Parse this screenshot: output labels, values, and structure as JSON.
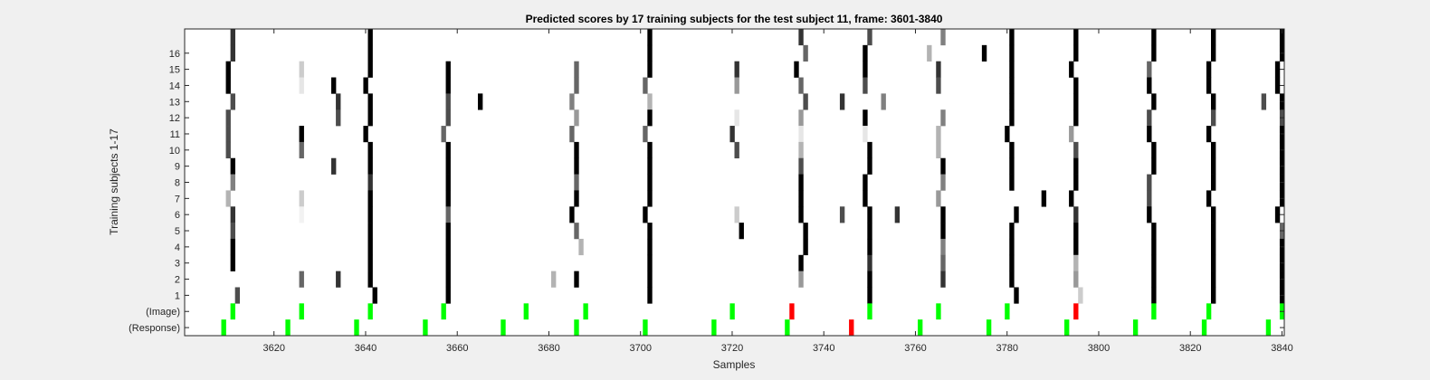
{
  "chart_data": {
    "type": "heatmap",
    "title": "Predicted scores by 17 training subjects for the test subject 11, frame: 3601-3840",
    "xlabel": "Samples",
    "ylabel": "Training subjects 1-17",
    "xlim": [
      3601,
      3840
    ],
    "x_ticks": [
      3620,
      3640,
      3660,
      3680,
      3700,
      3720,
      3740,
      3760,
      3780,
      3800,
      3820,
      3840
    ],
    "y_tick_labels": [
      "16",
      "15",
      "14",
      "13",
      "12",
      "11",
      "10",
      "9",
      "8",
      "7",
      "6",
      "5",
      "4",
      "3",
      "2",
      "1",
      "(Image)",
      "(Response)"
    ],
    "rows": [
      {
        "label": "",
        "marks": [
          [
            3611,
            0.8
          ],
          [
            3641,
            1.0
          ],
          [
            3702,
            1.0
          ],
          [
            3735,
            0.8
          ],
          [
            3750,
            0.7
          ],
          [
            3766,
            0.5
          ],
          [
            3781,
            1.0
          ],
          [
            3795,
            1.0
          ],
          [
            3812,
            1.0
          ],
          [
            3825,
            1.0
          ],
          [
            3840,
            1.0
          ]
        ]
      },
      {
        "label": "16",
        "marks": [
          [
            3611,
            0.8
          ],
          [
            3641,
            1.0
          ],
          [
            3702,
            1.0
          ],
          [
            3736,
            0.6
          ],
          [
            3749,
            1.0
          ],
          [
            3763,
            0.3
          ],
          [
            3775,
            1.0
          ],
          [
            3781,
            1.0
          ],
          [
            3795,
            1.0
          ],
          [
            3812,
            1.0
          ],
          [
            3825,
            1.0
          ],
          [
            3840,
            1.0
          ]
        ]
      },
      {
        "label": "15",
        "marks": [
          [
            3610,
            1.0
          ],
          [
            3626,
            0.2
          ],
          [
            3641,
            1.0
          ],
          [
            3658,
            1.0
          ],
          [
            3686,
            0.6
          ],
          [
            3702,
            1.0
          ],
          [
            3721,
            0.8
          ],
          [
            3734,
            1.0
          ],
          [
            3749,
            1.0
          ],
          [
            3765,
            0.8
          ],
          [
            3781,
            1.0
          ],
          [
            3794,
            1.0
          ],
          [
            3811,
            0.6
          ],
          [
            3824,
            1.0
          ],
          [
            3839,
            1.0
          ]
        ]
      },
      {
        "label": "14",
        "marks": [
          [
            3610,
            1.0
          ],
          [
            3626,
            0.1
          ],
          [
            3633,
            1.0
          ],
          [
            3640,
            1.0
          ],
          [
            3658,
            1.0
          ],
          [
            3686,
            0.6
          ],
          [
            3701,
            0.6
          ],
          [
            3721,
            0.4
          ],
          [
            3735,
            0.6
          ],
          [
            3749,
            0.7
          ],
          [
            3765,
            0.7
          ],
          [
            3781,
            1.0
          ],
          [
            3795,
            1.0
          ],
          [
            3811,
            1.0
          ],
          [
            3824,
            1.0
          ],
          [
            3839,
            1.0
          ]
        ]
      },
      {
        "label": "13",
        "marks": [
          [
            3611,
            0.7
          ],
          [
            3634,
            0.8
          ],
          [
            3641,
            1.0
          ],
          [
            3658,
            0.7
          ],
          [
            3665,
            1.0
          ],
          [
            3685,
            0.5
          ],
          [
            3702,
            0.3
          ],
          [
            3736,
            0.7
          ],
          [
            3744,
            0.8
          ],
          [
            3753,
            0.5
          ],
          [
            3781,
            1.0
          ],
          [
            3795,
            1.0
          ],
          [
            3812,
            1.0
          ],
          [
            3825,
            1.0
          ],
          [
            3836,
            0.7
          ],
          [
            3840,
            1.0
          ]
        ]
      },
      {
        "label": "12",
        "marks": [
          [
            3610,
            0.7
          ],
          [
            3634,
            0.7
          ],
          [
            3641,
            1.0
          ],
          [
            3658,
            0.7
          ],
          [
            3686,
            0.4
          ],
          [
            3702,
            1.0
          ],
          [
            3721,
            0.1
          ],
          [
            3735,
            0.4
          ],
          [
            3749,
            1.0
          ],
          [
            3766,
            0.5
          ],
          [
            3781,
            1.0
          ],
          [
            3795,
            1.0
          ],
          [
            3811,
            0.7
          ],
          [
            3825,
            0.7
          ],
          [
            3840,
            0.7
          ]
        ]
      },
      {
        "label": "11",
        "marks": [
          [
            3610,
            0.7
          ],
          [
            3626,
            1.0
          ],
          [
            3640,
            1.0
          ],
          [
            3657,
            0.6
          ],
          [
            3685,
            0.6
          ],
          [
            3701,
            0.6
          ],
          [
            3720,
            0.8
          ],
          [
            3735,
            0.1
          ],
          [
            3749,
            0.1
          ],
          [
            3765,
            0.3
          ],
          [
            3780,
            1.0
          ],
          [
            3794,
            0.4
          ],
          [
            3811,
            1.0
          ],
          [
            3824,
            1.0
          ],
          [
            3840,
            1.0
          ]
        ]
      },
      {
        "label": "10",
        "marks": [
          [
            3610,
            0.7
          ],
          [
            3626,
            0.6
          ],
          [
            3641,
            1.0
          ],
          [
            3658,
            1.0
          ],
          [
            3686,
            1.0
          ],
          [
            3702,
            1.0
          ],
          [
            3721,
            0.7
          ],
          [
            3735,
            0.3
          ],
          [
            3750,
            1.0
          ],
          [
            3765,
            0.3
          ],
          [
            3781,
            1.0
          ],
          [
            3795,
            0.7
          ],
          [
            3812,
            1.0
          ],
          [
            3825,
            1.0
          ],
          [
            3840,
            1.0
          ]
        ]
      },
      {
        "label": "9",
        "marks": [
          [
            3611,
            1.0
          ],
          [
            3633,
            0.8
          ],
          [
            3641,
            1.0
          ],
          [
            3658,
            1.0
          ],
          [
            3686,
            1.0
          ],
          [
            3702,
            1.0
          ],
          [
            3735,
            0.7
          ],
          [
            3750,
            1.0
          ],
          [
            3766,
            1.0
          ],
          [
            3781,
            1.0
          ],
          [
            3795,
            1.0
          ],
          [
            3812,
            1.0
          ],
          [
            3825,
            1.0
          ],
          [
            3840,
            1.0
          ]
        ]
      },
      {
        "label": "8",
        "marks": [
          [
            3611,
            0.5
          ],
          [
            3641,
            0.8
          ],
          [
            3658,
            1.0
          ],
          [
            3686,
            0.6
          ],
          [
            3702,
            1.0
          ],
          [
            3735,
            1.0
          ],
          [
            3749,
            1.0
          ],
          [
            3766,
            0.5
          ],
          [
            3781,
            1.0
          ],
          [
            3795,
            1.0
          ],
          [
            3811,
            0.7
          ],
          [
            3825,
            1.0
          ],
          [
            3840,
            1.0
          ]
        ]
      },
      {
        "label": "7",
        "marks": [
          [
            3610,
            0.3
          ],
          [
            3626,
            0.2
          ],
          [
            3641,
            1.0
          ],
          [
            3658,
            1.0
          ],
          [
            3686,
            1.0
          ],
          [
            3702,
            1.0
          ],
          [
            3735,
            1.0
          ],
          [
            3749,
            1.0
          ],
          [
            3765,
            0.4
          ],
          [
            3788,
            1.0
          ],
          [
            3794,
            1.0
          ],
          [
            3811,
            0.7
          ],
          [
            3824,
            1.0
          ],
          [
            3840,
            1.0
          ]
        ]
      },
      {
        "label": "6",
        "marks": [
          [
            3611,
            0.8
          ],
          [
            3626,
            0.05
          ],
          [
            3641,
            1.0
          ],
          [
            3658,
            0.6
          ],
          [
            3685,
            1.0
          ],
          [
            3701,
            1.0
          ],
          [
            3721,
            0.2
          ],
          [
            3735,
            1.0
          ],
          [
            3744,
            0.7
          ],
          [
            3750,
            1.0
          ],
          [
            3756,
            0.8
          ],
          [
            3766,
            1.0
          ],
          [
            3782,
            1.0
          ],
          [
            3795,
            0.8
          ],
          [
            3811,
            1.0
          ],
          [
            3825,
            1.0
          ],
          [
            3839,
            1.0
          ]
        ]
      },
      {
        "label": "5",
        "marks": [
          [
            3611,
            0.7
          ],
          [
            3641,
            1.0
          ],
          [
            3658,
            1.0
          ],
          [
            3686,
            0.6
          ],
          [
            3702,
            1.0
          ],
          [
            3722,
            1.0
          ],
          [
            3736,
            1.0
          ],
          [
            3750,
            1.0
          ],
          [
            3766,
            1.0
          ],
          [
            3781,
            1.0
          ],
          [
            3795,
            1.0
          ],
          [
            3812,
            1.0
          ],
          [
            3825,
            1.0
          ],
          [
            3840,
            0.6
          ]
        ]
      },
      {
        "label": "4",
        "marks": [
          [
            3611,
            1.0
          ],
          [
            3641,
            1.0
          ],
          [
            3658,
            1.0
          ],
          [
            3687,
            0.3
          ],
          [
            3702,
            1.0
          ],
          [
            3736,
            1.0
          ],
          [
            3750,
            1.0
          ],
          [
            3766,
            0.5
          ],
          [
            3781,
            1.0
          ],
          [
            3795,
            1.0
          ],
          [
            3812,
            1.0
          ],
          [
            3825,
            1.0
          ],
          [
            3840,
            1.0
          ]
        ]
      },
      {
        "label": "3",
        "marks": [
          [
            3611,
            1.0
          ],
          [
            3641,
            1.0
          ],
          [
            3658,
            1.0
          ],
          [
            3702,
            1.0
          ],
          [
            3735,
            1.0
          ],
          [
            3750,
            0.8
          ],
          [
            3766,
            0.6
          ],
          [
            3781,
            1.0
          ],
          [
            3795,
            0.3
          ],
          [
            3812,
            1.0
          ],
          [
            3825,
            1.0
          ],
          [
            3840,
            1.0
          ]
        ]
      },
      {
        "label": "2",
        "marks": [
          [
            3626,
            0.6
          ],
          [
            3634,
            0.8
          ],
          [
            3641,
            1.0
          ],
          [
            3658,
            1.0
          ],
          [
            3681,
            0.3
          ],
          [
            3686,
            1.0
          ],
          [
            3702,
            1.0
          ],
          [
            3735,
            0.4
          ],
          [
            3750,
            1.0
          ],
          [
            3766,
            0.8
          ],
          [
            3781,
            1.0
          ],
          [
            3795,
            0.4
          ],
          [
            3812,
            1.0
          ],
          [
            3825,
            1.0
          ],
          [
            3840,
            1.0
          ]
        ]
      },
      {
        "label": "1",
        "marks": [
          [
            3612,
            0.7
          ],
          [
            3642,
            1.0
          ],
          [
            3658,
            1.0
          ],
          [
            3702,
            1.0
          ],
          [
            3750,
            1.0
          ],
          [
            3782,
            1.0
          ],
          [
            3796,
            0.2
          ],
          [
            3812,
            1.0
          ],
          [
            3825,
            1.0
          ],
          [
            3840,
            1.0
          ]
        ]
      }
    ],
    "image_events": {
      "label": "(Image)",
      "green": [
        3611,
        3626,
        3641,
        3657,
        3675,
        3688,
        3720,
        3750,
        3765,
        3780,
        3812,
        3824,
        3840
      ],
      "red": [
        3733,
        3795
      ]
    },
    "response_events": {
      "label": "(Response)",
      "green": [
        3609,
        3623,
        3638,
        3653,
        3670,
        3686,
        3701,
        3716,
        3732,
        3761,
        3776,
        3793,
        3808,
        3823,
        3837
      ],
      "red": [
        3746
      ]
    },
    "colors": {
      "green": "#00ff00",
      "red": "#ff0000",
      "background": "#ffffff",
      "figure": "#f0f0f0"
    },
    "grid": false
  }
}
